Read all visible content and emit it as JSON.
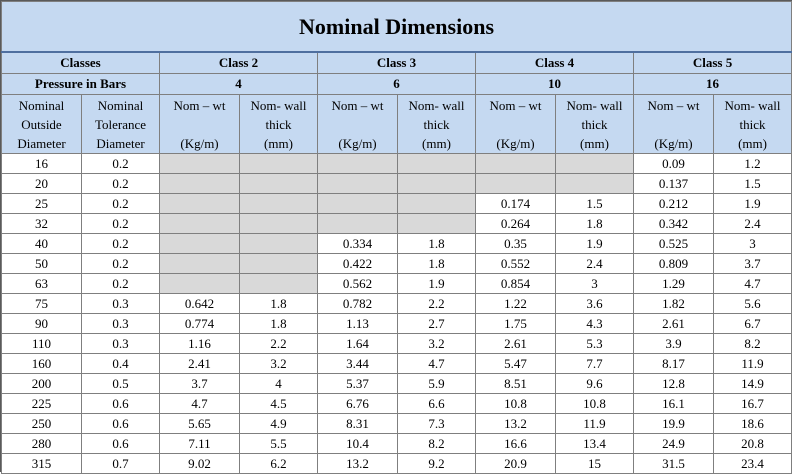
{
  "title": "Nominal Dimensions",
  "classes_label": "Classes",
  "pressure_label": "Pressure in Bars",
  "classes": [
    {
      "name": "Class 2",
      "pressure": "4"
    },
    {
      "name": "Class 3",
      "pressure": "6"
    },
    {
      "name": "Class 4",
      "pressure": "10"
    },
    {
      "name": "Class 5",
      "pressure": "16"
    }
  ],
  "col_headers": {
    "od": [
      "Nominal",
      "Outside",
      "Diameter"
    ],
    "tol": [
      "Nominal",
      "Tolerance",
      "Diameter"
    ],
    "wt": [
      "Nom – wt",
      "(Kg/m)"
    ],
    "wall": [
      "Nom- wall",
      "thick",
      "(mm)"
    ]
  },
  "rows": [
    {
      "od": "16",
      "tol": "0.2",
      "vals": [
        "",
        "",
        "",
        "",
        "",
        "",
        "0.09",
        "1.2"
      ],
      "blank": [
        0,
        1,
        2,
        3,
        4,
        5
      ]
    },
    {
      "od": "20",
      "tol": "0.2",
      "vals": [
        "",
        "",
        "",
        "",
        "",
        "",
        "0.137",
        "1.5"
      ],
      "blank": [
        0,
        1,
        2,
        3,
        4,
        5
      ]
    },
    {
      "od": "25",
      "tol": "0.2",
      "vals": [
        "",
        "",
        "",
        "",
        "0.174",
        "1.5",
        "0.212",
        "1.9"
      ],
      "blank": [
        0,
        1,
        2,
        3
      ]
    },
    {
      "od": "32",
      "tol": "0.2",
      "vals": [
        "",
        "",
        "",
        "",
        "0.264",
        "1.8",
        "0.342",
        "2.4"
      ],
      "blank": [
        0,
        1,
        2,
        3
      ]
    },
    {
      "od": "40",
      "tol": "0.2",
      "vals": [
        "",
        "",
        "0.334",
        "1.8",
        "0.35",
        "1.9",
        "0.525",
        "3"
      ],
      "blank": [
        0,
        1
      ]
    },
    {
      "od": "50",
      "tol": "0.2",
      "vals": [
        "",
        "",
        "0.422",
        "1.8",
        "0.552",
        "2.4",
        "0.809",
        "3.7"
      ],
      "blank": [
        0,
        1
      ]
    },
    {
      "od": "63",
      "tol": "0.2",
      "vals": [
        "",
        "",
        "0.562",
        "1.9",
        "0.854",
        "3",
        "1.29",
        "4.7"
      ],
      "blank": [
        0,
        1
      ]
    },
    {
      "od": "75",
      "tol": "0.3",
      "vals": [
        "0.642",
        "1.8",
        "0.782",
        "2.2",
        "1.22",
        "3.6",
        "1.82",
        "5.6"
      ],
      "blank": []
    },
    {
      "od": "90",
      "tol": "0.3",
      "vals": [
        "0.774",
        "1.8",
        "1.13",
        "2.7",
        "1.75",
        "4.3",
        "2.61",
        "6.7"
      ],
      "blank": []
    },
    {
      "od": "110",
      "tol": "0.3",
      "vals": [
        "1.16",
        "2.2",
        "1.64",
        "3.2",
        "2.61",
        "5.3",
        "3.9",
        "8.2"
      ],
      "blank": []
    },
    {
      "od": "160",
      "tol": "0.4",
      "vals": [
        "2.41",
        "3.2",
        "3.44",
        "4.7",
        "5.47",
        "7.7",
        "8.17",
        "11.9"
      ],
      "blank": []
    },
    {
      "od": "200",
      "tol": "0.5",
      "vals": [
        "3.7",
        "4",
        "5.37",
        "5.9",
        "8.51",
        "9.6",
        "12.8",
        "14.9"
      ],
      "blank": []
    },
    {
      "od": "225",
      "tol": "0.6",
      "vals": [
        "4.7",
        "4.5",
        "6.76",
        "6.6",
        "10.8",
        "10.8",
        "16.1",
        "16.7"
      ],
      "blank": []
    },
    {
      "od": "250",
      "tol": "0.6",
      "vals": [
        "5.65",
        "4.9",
        "8.31",
        "7.3",
        "13.2",
        "11.9",
        "19.9",
        "18.6"
      ],
      "blank": []
    },
    {
      "od": "280",
      "tol": "0.6",
      "vals": [
        "7.11",
        "5.5",
        "10.4",
        "8.2",
        "16.6",
        "13.4",
        "24.9",
        "20.8"
      ],
      "blank": []
    },
    {
      "od": "315",
      "tol": "0.7",
      "vals": [
        "9.02",
        "6.2",
        "13.2",
        "9.2",
        "20.9",
        "15",
        "31.5",
        "23.4"
      ],
      "blank": []
    }
  ]
}
